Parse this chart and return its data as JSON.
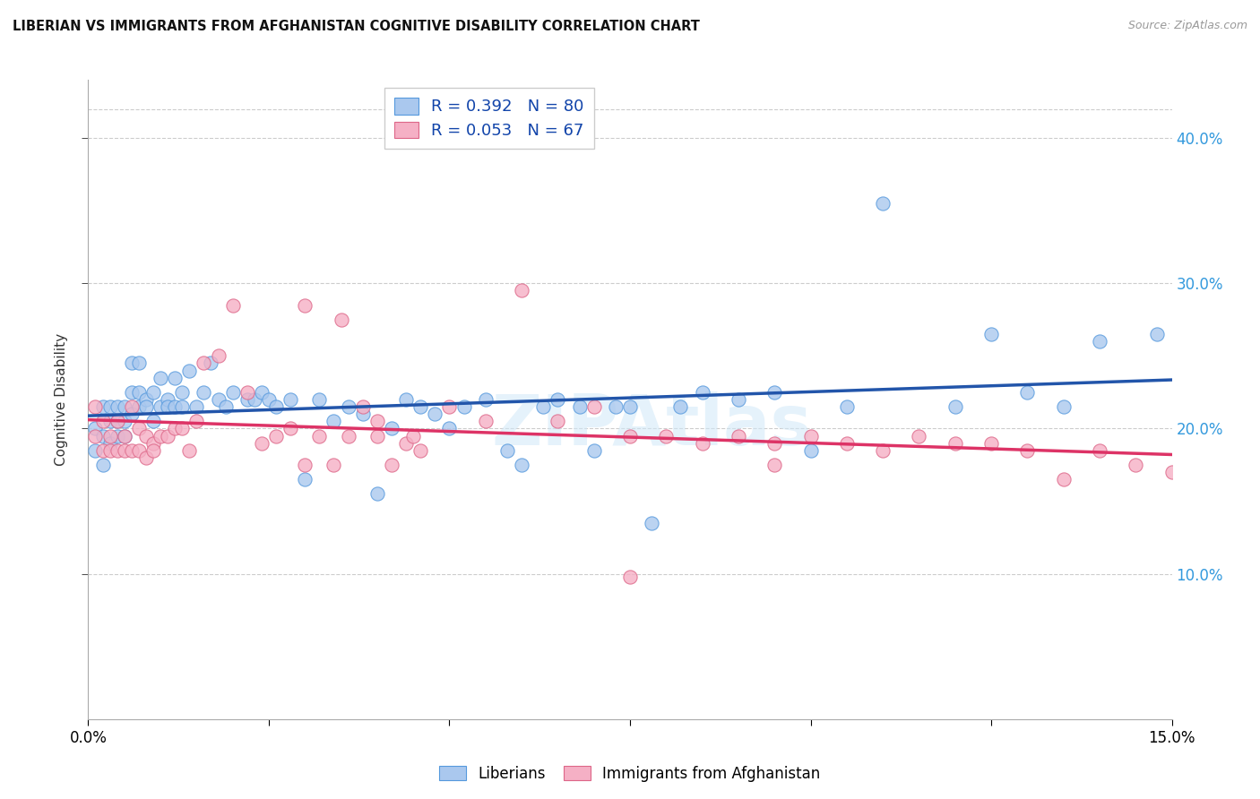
{
  "title": "LIBERIAN VS IMMIGRANTS FROM AFGHANISTAN COGNITIVE DISABILITY CORRELATION CHART",
  "source": "Source: ZipAtlas.com",
  "ylabel": "Cognitive Disability",
  "xlim": [
    0.0,
    0.15
  ],
  "ylim": [
    0.0,
    0.44
  ],
  "y_ticks_right": [
    0.1,
    0.2,
    0.3,
    0.4
  ],
  "blue_R": 0.392,
  "blue_N": 80,
  "pink_R": 0.053,
  "pink_N": 67,
  "blue_scatter_color": "#aac8ee",
  "blue_edge_color": "#5599dd",
  "pink_scatter_color": "#f5b0c5",
  "pink_edge_color": "#dd6688",
  "blue_line_color": "#2255aa",
  "pink_line_color": "#dd3366",
  "legend_label_blue": "Liberians",
  "legend_label_pink": "Immigrants from Afghanistan",
  "watermark": "ZIPAtlas",
  "blue_x": [
    0.001,
    0.001,
    0.002,
    0.002,
    0.002,
    0.003,
    0.003,
    0.003,
    0.004,
    0.004,
    0.004,
    0.005,
    0.005,
    0.005,
    0.006,
    0.006,
    0.006,
    0.007,
    0.007,
    0.007,
    0.008,
    0.008,
    0.009,
    0.009,
    0.01,
    0.01,
    0.011,
    0.011,
    0.012,
    0.012,
    0.013,
    0.013,
    0.014,
    0.015,
    0.016,
    0.017,
    0.018,
    0.019,
    0.02,
    0.022,
    0.023,
    0.024,
    0.025,
    0.026,
    0.028,
    0.03,
    0.032,
    0.034,
    0.036,
    0.038,
    0.04,
    0.042,
    0.044,
    0.046,
    0.048,
    0.05,
    0.052,
    0.055,
    0.058,
    0.06,
    0.063,
    0.065,
    0.068,
    0.07,
    0.073,
    0.075,
    0.078,
    0.082,
    0.085,
    0.09,
    0.095,
    0.1,
    0.105,
    0.11,
    0.12,
    0.125,
    0.13,
    0.135,
    0.14,
    0.148
  ],
  "blue_y": [
    0.2,
    0.185,
    0.195,
    0.215,
    0.175,
    0.215,
    0.205,
    0.19,
    0.215,
    0.205,
    0.195,
    0.215,
    0.205,
    0.195,
    0.245,
    0.225,
    0.21,
    0.245,
    0.225,
    0.215,
    0.22,
    0.215,
    0.225,
    0.205,
    0.235,
    0.215,
    0.22,
    0.215,
    0.235,
    0.215,
    0.225,
    0.215,
    0.24,
    0.215,
    0.225,
    0.245,
    0.22,
    0.215,
    0.225,
    0.22,
    0.22,
    0.225,
    0.22,
    0.215,
    0.22,
    0.165,
    0.22,
    0.205,
    0.215,
    0.21,
    0.155,
    0.2,
    0.22,
    0.215,
    0.21,
    0.2,
    0.215,
    0.22,
    0.185,
    0.175,
    0.215,
    0.22,
    0.215,
    0.185,
    0.215,
    0.215,
    0.135,
    0.215,
    0.225,
    0.22,
    0.225,
    0.185,
    0.215,
    0.355,
    0.215,
    0.265,
    0.225,
    0.215,
    0.26,
    0.265
  ],
  "pink_x": [
    0.001,
    0.001,
    0.002,
    0.002,
    0.003,
    0.003,
    0.004,
    0.004,
    0.005,
    0.005,
    0.006,
    0.006,
    0.007,
    0.007,
    0.008,
    0.008,
    0.009,
    0.009,
    0.01,
    0.011,
    0.012,
    0.013,
    0.014,
    0.015,
    0.016,
    0.018,
    0.02,
    0.022,
    0.024,
    0.026,
    0.028,
    0.03,
    0.032,
    0.034,
    0.036,
    0.038,
    0.04,
    0.042,
    0.044,
    0.046,
    0.03,
    0.035,
    0.04,
    0.045,
    0.05,
    0.055,
    0.06,
    0.065,
    0.07,
    0.075,
    0.08,
    0.085,
    0.09,
    0.095,
    0.1,
    0.105,
    0.11,
    0.115,
    0.12,
    0.125,
    0.13,
    0.135,
    0.14,
    0.145,
    0.15,
    0.075,
    0.095
  ],
  "pink_y": [
    0.215,
    0.195,
    0.205,
    0.185,
    0.195,
    0.185,
    0.205,
    0.185,
    0.195,
    0.185,
    0.215,
    0.185,
    0.2,
    0.185,
    0.195,
    0.18,
    0.19,
    0.185,
    0.195,
    0.195,
    0.2,
    0.2,
    0.185,
    0.205,
    0.245,
    0.25,
    0.285,
    0.225,
    0.19,
    0.195,
    0.2,
    0.175,
    0.195,
    0.175,
    0.195,
    0.215,
    0.195,
    0.175,
    0.19,
    0.185,
    0.285,
    0.275,
    0.205,
    0.195,
    0.215,
    0.205,
    0.295,
    0.205,
    0.215,
    0.195,
    0.195,
    0.19,
    0.195,
    0.19,
    0.195,
    0.19,
    0.185,
    0.195,
    0.19,
    0.19,
    0.185,
    0.165,
    0.185,
    0.175,
    0.17,
    0.098,
    0.175
  ]
}
